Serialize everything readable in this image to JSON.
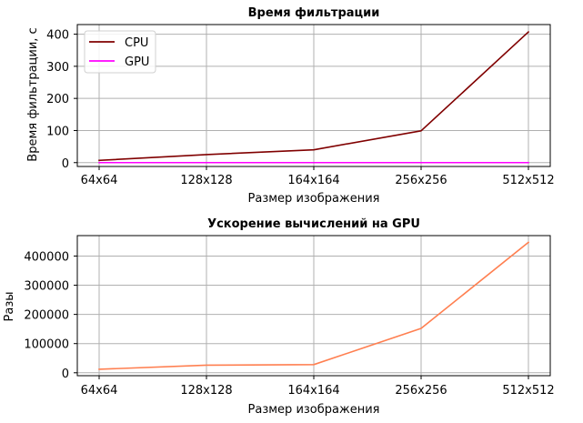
{
  "chart_data": [
    {
      "type": "line",
      "title": "Время фильтрации",
      "xlabel": "Размер изображения",
      "ylabel": "Время фильтрации, с",
      "categories": [
        "64x64",
        "128x128",
        "164x164",
        "256x256",
        "512x512"
      ],
      "ylim": [
        -12,
        430
      ],
      "yticks": [
        0,
        100,
        200,
        300,
        400
      ],
      "grid": true,
      "legend_position": "top-left",
      "series": [
        {
          "name": "CPU",
          "color": "#800000",
          "values": [
            7,
            25,
            40,
            99,
            407
          ]
        },
        {
          "name": "GPU",
          "color": "#ff00ff",
          "values": [
            0.001,
            0.001,
            0.001,
            0.001,
            0.001
          ]
        }
      ]
    },
    {
      "type": "line",
      "title": "Ускорение вычислений на GPU",
      "xlabel": "Размер изображения",
      "ylabel": "Разы",
      "categories": [
        "64x64",
        "128x128",
        "164x164",
        "256x256",
        "512x512"
      ],
      "ylim": [
        -10000,
        470000
      ],
      "yticks": [
        0,
        100000,
        200000,
        300000,
        400000
      ],
      "grid": true,
      "series": [
        {
          "color": "#ff7f50",
          "values": [
            12000,
            26000,
            28000,
            152000,
            447000
          ]
        }
      ]
    }
  ]
}
